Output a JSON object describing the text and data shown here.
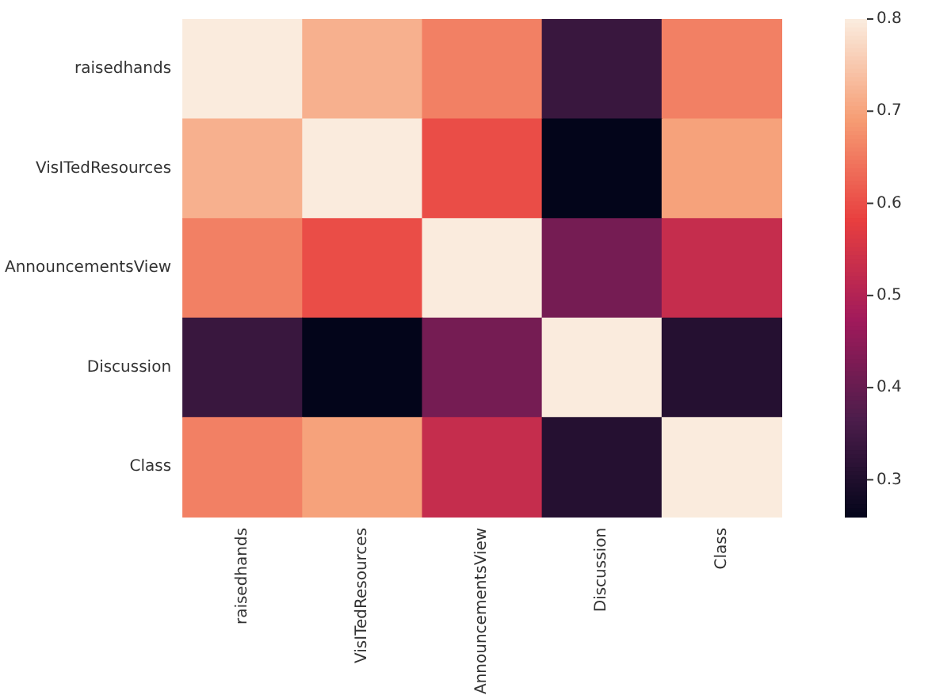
{
  "chart_data": {
    "type": "heatmap",
    "categories": [
      "raisedhands",
      "VisITedResources",
      "AnnouncementsView",
      "Discussion",
      "Class"
    ],
    "y_categories": [
      "raisedhands",
      "VisITedResources",
      "AnnouncementsView",
      "Discussion",
      "Class"
    ],
    "cells": [
      [
        0.8,
        0.72,
        0.66,
        0.34,
        0.66
      ],
      [
        0.72,
        0.8,
        0.6,
        0.26,
        0.7
      ],
      [
        0.66,
        0.6,
        0.8,
        0.42,
        0.53
      ],
      [
        0.34,
        0.26,
        0.42,
        0.8,
        0.31
      ],
      [
        0.66,
        0.7,
        0.53,
        0.31,
        0.8
      ]
    ],
    "clim": [
      0.26,
      0.8
    ],
    "cticks": [
      0.3,
      0.4,
      0.5,
      0.6,
      0.7,
      0.8
    ]
  }
}
